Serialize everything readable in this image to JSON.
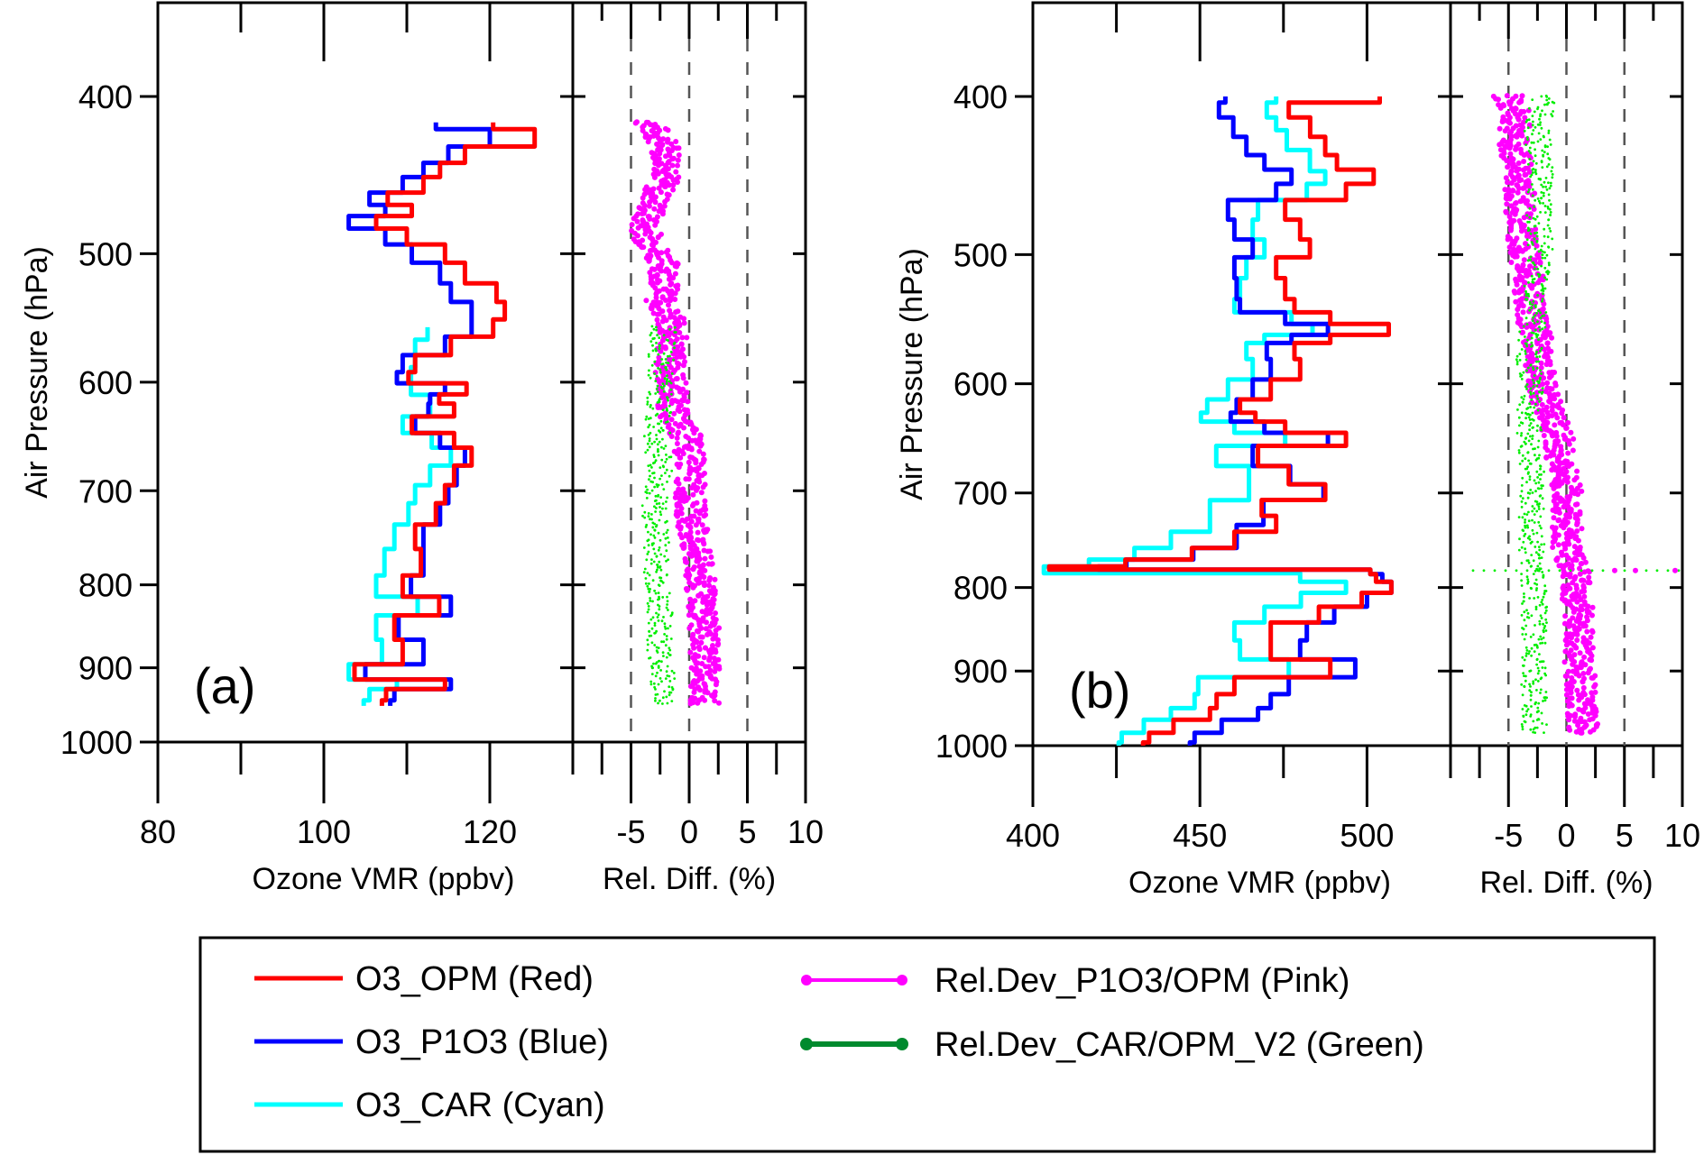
{
  "chart_data": [
    {
      "id": "a",
      "type": "line",
      "panel_label": "(a)",
      "subplots": [
        {
          "kind": "profile",
          "xlabel": "Ozone VMR (ppbv)",
          "ylabel": "Air Pressure (hPa)",
          "xlim": [
            80,
            130
          ],
          "xticks": [
            80,
            100,
            120
          ],
          "xminor": [
            90,
            110,
            130
          ],
          "ylim": [
            350,
            1000
          ],
          "yscale": "log",
          "yticks": [
            400,
            500,
            600,
            700,
            800,
            900,
            1000
          ],
          "y_inverted": true,
          "series": [
            {
              "name": "O3_CAR (Cyan)",
              "color": "#00ffff",
              "p": [
                555,
                575,
                600,
                622,
                638,
                652,
                665,
                686,
                703,
                722,
                747,
                774,
                805,
                822,
                849,
                881,
                910,
                920,
                935,
                950
              ],
              "v": [
                112.5,
                111,
                110.5,
                112.8,
                109.5,
                113,
                115.3,
                112.8,
                111,
                110.2,
                108.5,
                107.3,
                106.3,
                111.3,
                106.3,
                107,
                103,
                108.8,
                105.5,
                104.8
              ]
            },
            {
              "name": "O3_P1O3 (Blue)",
              "color": "#0000ff",
              "p": [
                415,
                423,
                436,
                443,
                454,
                463,
                470,
                478,
                487,
                500,
                513,
                530,
                541,
                557,
                568,
                587,
                596,
                606,
                615,
                622,
                638,
                652,
                665,
                686,
                703,
                722,
                747,
                774,
                805,
                822,
                849,
                881,
                910,
                920,
                935,
                950
              ],
              "v": [
                113.5,
                120,
                115,
                112,
                109.5,
                105.5,
                107.4,
                103,
                107.4,
                110.6,
                114,
                115.3,
                117.8,
                117.8,
                114.6,
                109.5,
                108.8,
                114.6,
                112.8,
                112.6,
                111,
                114,
                117,
                116,
                115,
                114,
                112,
                112,
                110.5,
                115.3,
                109,
                112,
                105,
                115.3,
                108.5,
                108
              ]
            },
            {
              "name": "O3_OPM (Red)",
              "color": "#ff0000",
              "p": [
                415,
                423,
                436,
                443,
                454,
                463,
                470,
                478,
                487,
                500,
                513,
                530,
                541,
                557,
                568,
                587,
                596,
                606,
                615,
                622,
                638,
                652,
                665,
                686,
                703,
                722,
                747,
                774,
                805,
                822,
                849,
                881,
                910,
                920,
                935,
                950
              ],
              "v": [
                120.4,
                125.4,
                117,
                114,
                112,
                107.7,
                110.6,
                106.3,
                110,
                114.6,
                117,
                120.8,
                121.8,
                120.4,
                115.3,
                111,
                110.2,
                117.2,
                113.9,
                115.7,
                110.6,
                115.7,
                117.8,
                115.7,
                114.6,
                113.5,
                111,
                111.7,
                109.5,
                113.9,
                108.5,
                109.5,
                103.7,
                114.6,
                107.5,
                107
              ]
            }
          ]
        },
        {
          "kind": "reldiff",
          "xlabel": "Rel. Diff. (%)",
          "xlim": [
            -10,
            10
          ],
          "xticks": [
            -5,
            0,
            5,
            10
          ],
          "xminor": [
            -7.5,
            -2.5,
            2.5,
            7.5
          ],
          "dashed_lines_at": [
            -5,
            0,
            5
          ],
          "series": [
            {
              "name": "Rel.Dev_P1O3/OPM (Pink)",
              "color": "#ff00ff",
              "p": [
                415,
                430,
                445,
                455,
                465,
                478,
                490,
                505,
                519,
                534,
                549,
                566,
                590,
                606,
                627,
                650,
                680,
                713,
                751,
                792,
                835,
                881,
                928,
                950
              ],
              "v": [
                -3.5,
                -2.0,
                -1.7,
                -2.5,
                -3.0,
                -3.8,
                -3.5,
                -2.2,
                -2.0,
                -2.5,
                -1.7,
                -1.4,
                -1.7,
                -1.4,
                -1.4,
                -0.1,
                0.1,
                0.1,
                0.4,
                0.9,
                1.2,
                1.4,
                1.4,
                1.4
              ]
            },
            {
              "name": "Rel.Dev_CAR/OPM_V2 (Green)",
              "color": "#00ee00",
              "p": [
                555,
                590,
                627,
                650,
                680,
                713,
                751,
                792,
                835,
                881,
                928,
                950
              ],
              "v": [
                -2.2,
                -2.5,
                -2.6,
                -2.8,
                -2.5,
                -3.0,
                -2.8,
                -2.8,
                -2.5,
                -2.5,
                -2.2,
                -2.2
              ]
            }
          ]
        }
      ]
    },
    {
      "id": "b",
      "type": "line",
      "panel_label": "(b)",
      "subplots": [
        {
          "kind": "profile",
          "xlabel": "Ozone VMR (ppbv)",
          "ylabel": "Air Pressure (hPa)",
          "xlim": [
            400,
            525
          ],
          "xticks": [
            400,
            450,
            500
          ],
          "xminor": [
            425,
            475,
            525
          ],
          "ylim": [
            350,
            1000
          ],
          "yscale": "log",
          "yticks": [
            400,
            500,
            600,
            700,
            800,
            900,
            1000
          ],
          "y_inverted": true,
          "series": [
            {
              "name": "O3_CAR (Cyan)",
              "color": "#00ffff",
              "p": [
                400,
                407,
                417,
                422,
                441,
                448,
                457,
                469,
                483,
                496,
                508,
                526,
                539,
                546,
                557,
                563,
                570,
                589,
                604,
                623,
                627,
                639,
                647,
                663,
                685,
                730,
                749,
                764,
                774,
                779,
                789,
                798,
                814,
                830,
                851,
                873,
                898,
                918,
                942,
                955,
                973,
                991,
                1000
              ],
              "v": [
                472.8,
                470,
                472.8,
                476,
                482.9,
                487.5,
                482,
                467.4,
                465.8,
                469.3,
                463.9,
                462,
                460.3,
                477.4,
                483.7,
                469.3,
                463.9,
                465.8,
                458.4,
                452.2,
                450.3,
                460.3,
                475.5,
                454.9,
                464.7,
                453,
                441.3,
                430.4,
                416.8,
                403.3,
                480,
                493.7,
                480.2,
                469.3,
                460.3,
                462,
                476.6,
                449.5,
                448.4,
                441.3,
                433.2,
                426.6,
                425.7
              ]
            },
            {
              "name": "O3_P1O3 (Blue)",
              "color": "#0000ff",
              "p": [
                400,
                407,
                417,
                430,
                439,
                448,
                457,
                469,
                483,
                496,
                508,
                526,
                539,
                546,
                557,
                563,
                570,
                589,
                604,
                623,
                627,
                639,
                647,
                663,
                685,
                698,
                716,
                749,
                764,
                774,
                779,
                781,
                789,
                798,
                814,
                830,
                851,
                873,
                898,
                918,
                942,
                955,
                973,
                991,
                1000
              ],
              "v": [
                457.6,
                455.7,
                460,
                463.9,
                469.3,
                477.4,
                472.8,
                458.4,
                460.3,
                465.8,
                460.3,
                461,
                462,
                475.5,
                488.3,
                477.4,
                470,
                471.2,
                465.8,
                461,
                459.2,
                469.3,
                488.3,
                465.8,
                477,
                487,
                469,
                461,
                448,
                428,
                419.6,
                501,
                504.6,
                507.3,
                500,
                490.2,
                482,
                480,
                496.5,
                476.6,
                471.2,
                467.4,
                456.5,
                448.4,
                447
              ]
            },
            {
              "name": "O3_OPM (Red)",
              "color": "#ff0000",
              "p": [
                400,
                407,
                417,
                430,
                439,
                448,
                457,
                469,
                483,
                496,
                508,
                526,
                539,
                546,
                557,
                563,
                570,
                589,
                604,
                623,
                627,
                639,
                647,
                663,
                685,
                698,
                716,
                730,
                749,
                764,
                774,
                779,
                781,
                789,
                798,
                814,
                830,
                851,
                873,
                898,
                918,
                942,
                955,
                973,
                991,
                1000
              ],
              "v": [
                503.8,
                476.6,
                483,
                487.5,
                491,
                502,
                493.7,
                475.5,
                480,
                482.9,
                472.8,
                475.5,
                478.3,
                489,
                506.5,
                489,
                478.3,
                480,
                471.2,
                462,
                466.6,
                475.5,
                493.7,
                467.4,
                476.6,
                487.5,
                468.5,
                472.8,
                460.3,
                447.6,
                427.7,
                404.9,
                501,
                502.7,
                507.3,
                498.4,
                485.6,
                471.2,
                471.2,
                489,
                460.3,
                455,
                453,
                442.1,
                434.8,
                433
              ]
            }
          ]
        },
        {
          "kind": "reldiff",
          "xlabel": "Rel. Diff. (%)",
          "xlim": [
            -10,
            10
          ],
          "xticks": [
            -5,
            0,
            5,
            10
          ],
          "xminor": [
            -7.5,
            -2.5,
            2.5,
            7.5
          ],
          "dashed_lines_at": [
            -5,
            0,
            5
          ],
          "series": [
            {
              "name": "Rel.Dev_P1O3/OPM (Pink)",
              "color": "#ff00ff",
              "p": [
                400,
                410,
                425,
                440,
                460,
                480,
                500,
                520,
                540,
                560,
                580,
                600,
                627,
                648,
                677,
                698,
                730,
                758,
                779,
                807,
                851,
                896,
                942,
                985
              ],
              "v": [
                -5.0,
                -4.3,
                -4.6,
                -4.3,
                -4.0,
                -4.0,
                -3.6,
                -3.2,
                -3.2,
                -2.6,
                -2.4,
                -2.2,
                -1.4,
                -0.7,
                -0.4,
                0.1,
                0.1,
                -0.1,
                0.7,
                0.9,
                1.1,
                1.1,
                1.4,
                1.4
              ]
            },
            {
              "name": "Rel.Dev_CAR/OPM_V2 (Green)",
              "color": "#00ee00",
              "p": [
                400,
                410,
                420,
                440,
                460,
                480,
                500,
                520,
                545,
                560,
                580,
                600,
                627,
                648,
                677,
                730,
                758,
                807,
                851,
                896,
                942,
                985
              ],
              "v": [
                -2.0,
                -2.2,
                -2.6,
                -2.2,
                -2.4,
                -2.3,
                -2.3,
                -2.6,
                -2.6,
                -3.0,
                -3.2,
                -3.0,
                -3.2,
                -3.2,
                -3.0,
                -3.0,
                -3.0,
                -2.8,
                -2.8,
                -2.8,
                -2.8,
                -2.8
              ]
            }
          ]
        }
      ]
    }
  ],
  "legend": {
    "items": [
      {
        "label": "O3_OPM (Red)",
        "color": "#ff0000",
        "marker": "line"
      },
      {
        "label": "O3_P1O3 (Blue)",
        "color": "#0000ff",
        "marker": "line"
      },
      {
        "label": "O3_CAR (Cyan)",
        "color": "#00ffff",
        "marker": "line"
      },
      {
        "label": "Rel.Dev_P1O3/OPM (Pink)",
        "color": "#ff00ff",
        "marker": "line-dots"
      },
      {
        "label": "Rel.Dev_CAR/OPM_V2 (Green)",
        "color": "#008a2e",
        "marker": "line-dots"
      }
    ]
  },
  "outlier_line_b": {
    "p": 781
  }
}
